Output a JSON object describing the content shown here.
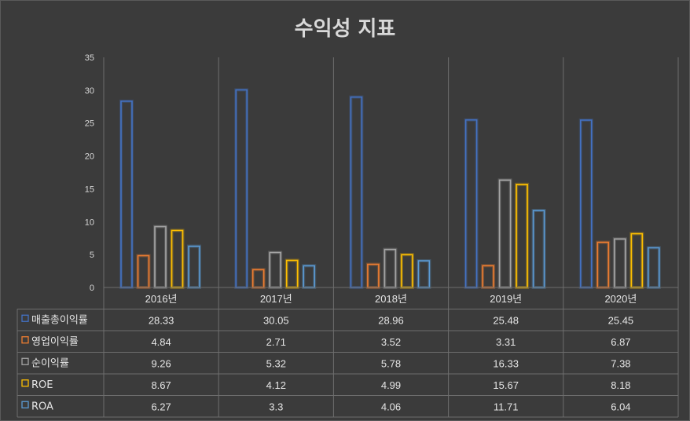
{
  "chart_data": {
    "type": "bar",
    "title": "수익성 지표",
    "categories": [
      "2016년",
      "2017년",
      "2018년",
      "2019년",
      "2020년"
    ],
    "ylim": [
      0,
      35
    ],
    "yticks": [
      0,
      5,
      10,
      15,
      20,
      25,
      30,
      35
    ],
    "grid": "vertical",
    "legend": "data-table",
    "series": [
      {
        "name": "매출총이익률",
        "color": "#4472c4",
        "values": [
          28.33,
          30.05,
          28.96,
          25.48,
          25.45
        ]
      },
      {
        "name": "영업이익률",
        "color": "#ed7d31",
        "values": [
          4.84,
          2.71,
          3.52,
          3.31,
          6.87
        ]
      },
      {
        "name": "순이익률",
        "color": "#a5a5a5",
        "values": [
          9.26,
          5.32,
          5.78,
          16.33,
          7.38
        ]
      },
      {
        "name": "ROE",
        "color": "#ffc000",
        "values": [
          8.67,
          4.12,
          4.99,
          15.67,
          8.18
        ]
      },
      {
        "name": "ROA",
        "color": "#5b9bd5",
        "values": [
          6.27,
          3.3,
          4.06,
          11.71,
          6.04
        ]
      }
    ]
  }
}
